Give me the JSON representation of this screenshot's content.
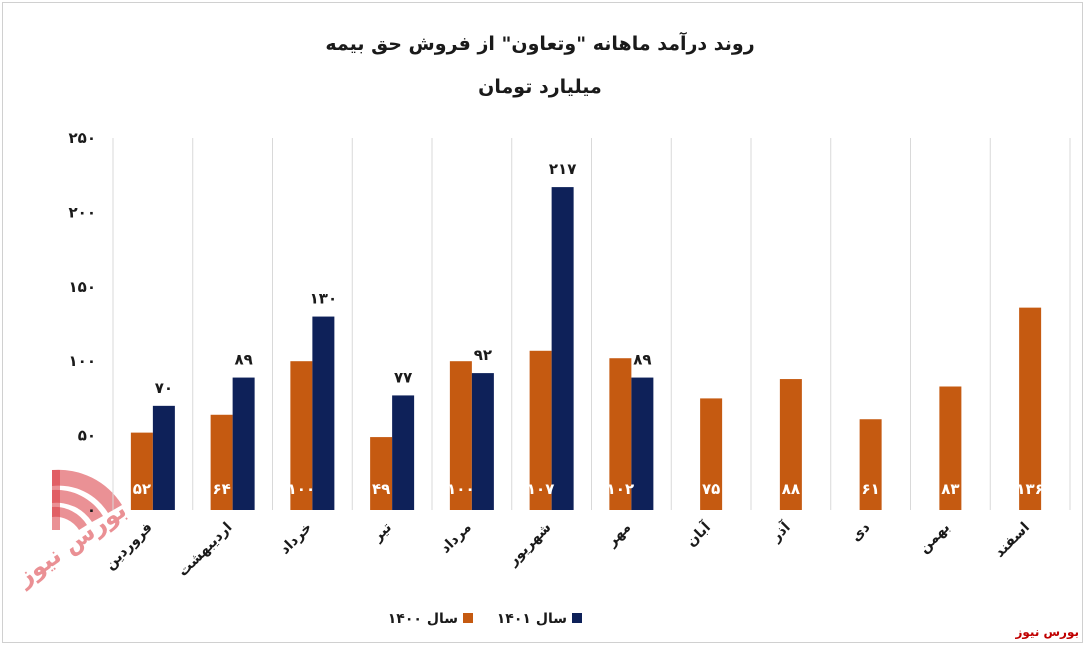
{
  "source_label": "بورس نیوز",
  "colors": {
    "series_1400": "#c55a11",
    "series_1401": "#0e2159",
    "grid": "#d9d9d9",
    "watermark": "#d9363e"
  },
  "chart_data": {
    "type": "bar",
    "title": "روند درآمد ماهانه \"وتعاون\" از فروش حق بیمه",
    "subtitle": "میلیارد تومان",
    "xlabel": "",
    "ylabel": "",
    "ylim": [
      0,
      250
    ],
    "yticks": [
      0,
      50,
      100,
      150,
      200,
      250
    ],
    "ytick_labels": [
      "۰",
      "۵۰",
      "۱۰۰",
      "۱۵۰",
      "۲۰۰",
      "۲۵۰"
    ],
    "grid": "vertical",
    "legend_position": "bottom",
    "categories": [
      "فروردین",
      "اردیبهشت",
      "خرداد",
      "تیر",
      "مرداد",
      "شهریور",
      "مهر",
      "آبان",
      "آذر",
      "دی",
      "بهمن",
      "اسفند"
    ],
    "series": [
      {
        "name": "سال ۱۴۰۰",
        "values": [
          52,
          64,
          100,
          49,
          100,
          107,
          102,
          75,
          88,
          61,
          83,
          136
        ],
        "labels": [
          "۵۲",
          "۶۴",
          "۱۰۰",
          "۴۹",
          "۱۰۰",
          "۱۰۷",
          "۱۰۲",
          "۷۵",
          "۸۸",
          "۶۱",
          "۸۳",
          "۱۳۶"
        ]
      },
      {
        "name": "سال ۱۴۰۱",
        "values": [
          70,
          89,
          130,
          77,
          92,
          217,
          89,
          null,
          null,
          null,
          null,
          null
        ],
        "labels": [
          "۷۰",
          "۸۹",
          "۱۳۰",
          "۷۷",
          "۹۲",
          "۲۱۷",
          "۸۹",
          null,
          null,
          null,
          null,
          null
        ]
      }
    ]
  }
}
